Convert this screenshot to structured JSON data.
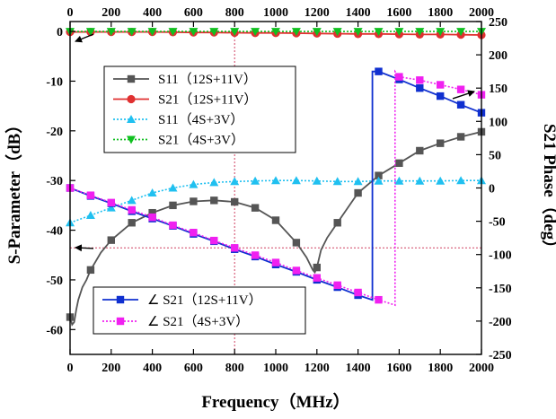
{
  "chart_data": {
    "type": "line",
    "xlabel": "Frequency（MHz）",
    "ylabel": "S-Parameter（dB）",
    "y2label": "S21 Phase（deg）",
    "xlim": [
      0,
      2000
    ],
    "ylim": [
      -65,
      2
    ],
    "y2lim": [
      -250,
      250
    ],
    "xticks": [
      0,
      200,
      400,
      600,
      800,
      1000,
      1200,
      1400,
      1600,
      1800,
      2000
    ],
    "yticks": [
      0,
      -10,
      -20,
      -30,
      -40,
      -50,
      -60
    ],
    "y2ticks": [
      250,
      200,
      150,
      100,
      50,
      0,
      -50,
      -100,
      -150,
      -200,
      -250
    ],
    "grid": false,
    "legend_left_position": "upper-center",
    "legend_right_position": "lower-center",
    "reference_lines": [
      {
        "type": "vertical",
        "x": 800,
        "color": "#d04060",
        "style": "dotted"
      },
      {
        "type": "horizontal",
        "axis": "y2",
        "y": -90,
        "color": "#d04060",
        "style": "dotted"
      }
    ],
    "annotations": [
      {
        "type": "arrow",
        "direction": "left",
        "axis": "left",
        "target_x": 0,
        "target_y": -2
      },
      {
        "type": "arrow",
        "direction": "left",
        "axis": "left",
        "target_x": 0,
        "target_y": -43.5
      },
      {
        "type": "arrow",
        "direction": "right",
        "axis": "right",
        "target_x": 2000,
        "target_y": 145
      }
    ],
    "series": [
      {
        "name": "S11（12S+11V）",
        "axis": "left",
        "color": "#555555",
        "marker": "square",
        "line": "solid",
        "x": [
          0,
          10,
          20,
          30,
          40,
          60,
          80,
          100,
          150,
          200,
          300,
          400,
          500,
          600,
          700,
          800,
          900,
          1000,
          1100,
          1150,
          1180,
          1190,
          1200,
          1220,
          1250,
          1300,
          1400,
          1500,
          1600,
          1700,
          1800,
          1900,
          2000
        ],
        "y": [
          -57.5,
          -59,
          -58.5,
          -56,
          -54,
          -51.5,
          -50,
          -48,
          -44.5,
          -42,
          -38.5,
          -36.5,
          -35,
          -34.2,
          -34,
          -34.3,
          -35.5,
          -38,
          -42.5,
          -45.5,
          -48,
          -48.5,
          -47.5,
          -44,
          -41.5,
          -38.5,
          -32.5,
          -29,
          -26.5,
          -24,
          -22.5,
          -21.2,
          -20.2
        ]
      },
      {
        "name": "S21（12S+11V）",
        "axis": "left",
        "color": "#e03030",
        "marker": "circle",
        "line": "solid",
        "x": [
          0,
          100,
          200,
          300,
          400,
          500,
          600,
          700,
          800,
          900,
          1000,
          1100,
          1200,
          1300,
          1400,
          1500,
          1600,
          1700,
          1800,
          1900,
          2000
        ],
        "y": [
          -0.1,
          -0.1,
          -0.1,
          -0.1,
          -0.1,
          -0.15,
          -0.2,
          -0.2,
          -0.25,
          -0.3,
          -0.3,
          -0.35,
          -0.4,
          -0.45,
          -0.5,
          -0.5,
          -0.55,
          -0.6,
          -0.6,
          -0.65,
          -0.7
        ]
      },
      {
        "name": "S11（4S+3V）",
        "axis": "left",
        "color": "#20c0f0",
        "marker": "triangle-up",
        "line": "dotted",
        "x": [
          0,
          100,
          200,
          300,
          400,
          500,
          600,
          700,
          800,
          900,
          1000,
          1100,
          1200,
          1300,
          1400,
          1500,
          1600,
          1700,
          1800,
          1900,
          2000
        ],
        "y": [
          -38.5,
          -37,
          -35.5,
          -34,
          -32.5,
          -31.5,
          -30.8,
          -30.4,
          -30.2,
          -30.1,
          -30,
          -30,
          -30.1,
          -30.2,
          -30.2,
          -30.1,
          -30.1,
          -30.1,
          -30.1,
          -30,
          -30
        ]
      },
      {
        "name": "S21（4S+3V）",
        "axis": "left",
        "color": "#10c020",
        "marker": "triangle-down",
        "line": "dotted",
        "x": [
          0,
          100,
          200,
          300,
          400,
          500,
          600,
          700,
          800,
          900,
          1000,
          1100,
          1200,
          1300,
          1400,
          1500,
          1600,
          1700,
          1800,
          1900,
          2000
        ],
        "y": [
          0,
          0,
          0,
          0,
          0,
          0,
          0,
          0,
          0,
          0,
          0,
          0,
          0,
          0,
          0,
          0,
          0,
          0,
          0,
          0,
          0
        ]
      },
      {
        "name": "∠ S21（12S+11V）",
        "axis": "right",
        "color": "#1030d0",
        "marker": "square",
        "line": "solid",
        "x": [
          0,
          100,
          200,
          300,
          400,
          500,
          600,
          700,
          800,
          900,
          1000,
          1100,
          1200,
          1300,
          1400,
          1470,
          1470,
          1500,
          1600,
          1700,
          1800,
          1900,
          2000
        ],
        "y": [
          0,
          -12,
          -23,
          -35,
          -46,
          -57,
          -69,
          -80,
          -92,
          -103,
          -115,
          -126,
          -138,
          -149,
          -161,
          -168,
          175,
          175,
          163,
          150,
          138,
          125,
          113
        ]
      },
      {
        "name": "∠ S21（4S+3V）",
        "axis": "right",
        "color": "#f020f0",
        "marker": "square",
        "line": "dotted",
        "x": [
          0,
          100,
          200,
          300,
          400,
          500,
          600,
          700,
          800,
          900,
          1000,
          1100,
          1200,
          1300,
          1400,
          1500,
          1580,
          1580,
          1600,
          1700,
          1800,
          1900,
          2000
        ],
        "y": [
          0,
          -11,
          -22,
          -33,
          -44,
          -56,
          -67,
          -79,
          -90,
          -101,
          -112,
          -124,
          -135,
          -146,
          -157,
          -168,
          -176,
          175,
          167,
          162,
          155,
          148,
          140
        ]
      }
    ]
  }
}
